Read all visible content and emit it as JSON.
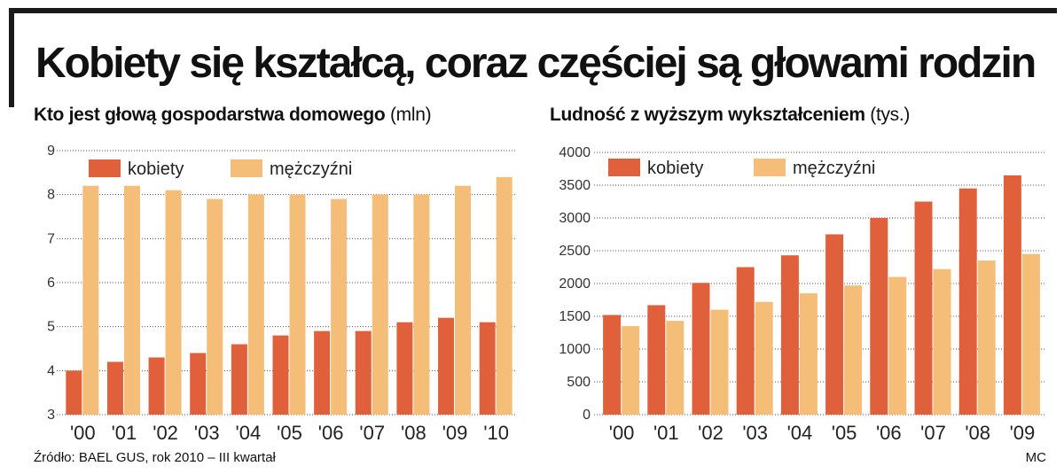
{
  "title": "Kobiety się kształcą, coraz częściej są głowami rodzin",
  "footer": {
    "source": "Źródło: BAEL GUS, rok 2010 – III kwartał",
    "author": "MC"
  },
  "colors": {
    "women": "#e0603b",
    "men": "#f4bd78",
    "frame": "#1a1a1a",
    "grid": "#555555"
  },
  "chart_data": [
    {
      "type": "bar",
      "title": "Kto jest głową gospodarstwa domowego",
      "unit": "(mln)",
      "categories": [
        "'00",
        "'01",
        "'02",
        "'03",
        "'04",
        "'05",
        "'06",
        "'07",
        "'08",
        "'09",
        "'10"
      ],
      "series": [
        {
          "name": "kobiety",
          "values": [
            4.0,
            4.2,
            4.3,
            4.4,
            4.6,
            4.8,
            4.9,
            4.9,
            5.1,
            5.2,
            5.1
          ]
        },
        {
          "name": "mężczyźni",
          "values": [
            8.2,
            8.2,
            8.1,
            7.9,
            8.0,
            8.0,
            7.9,
            8.0,
            8.0,
            8.2,
            8.4
          ]
        }
      ],
      "ylim": [
        3,
        9
      ],
      "yticks": [
        3,
        4,
        5,
        6,
        7,
        8,
        9
      ],
      "grid": true,
      "legend": "top-left"
    },
    {
      "type": "bar",
      "title": "Ludność z wyższym wykształceniem",
      "unit": "(tys.)",
      "categories": [
        "'00",
        "'01",
        "'02",
        "'03",
        "'04",
        "'05",
        "'06",
        "'07",
        "'08",
        "'09"
      ],
      "series": [
        {
          "name": "kobiety",
          "values": [
            1520,
            1670,
            2010,
            2250,
            2430,
            2750,
            3000,
            3250,
            3450,
            3650
          ]
        },
        {
          "name": "mężczyźni",
          "values": [
            1350,
            1430,
            1600,
            1720,
            1850,
            1970,
            2100,
            2220,
            2350,
            2450
          ]
        }
      ],
      "ylim": [
        0,
        4000
      ],
      "yticks": [
        0,
        500,
        1000,
        1500,
        2000,
        2500,
        3000,
        3500,
        4000
      ],
      "grid": true,
      "legend": "top-left"
    }
  ]
}
